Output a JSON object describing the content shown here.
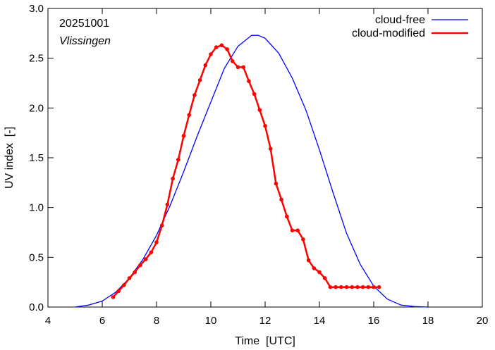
{
  "chart_data": {
    "type": "line",
    "title": "",
    "xlabel": "Time  [UTC]",
    "ylabel": "UV index  [-]",
    "xlim": [
      4,
      20
    ],
    "ylim": [
      0,
      3.0
    ],
    "xticks": [
      4,
      6,
      8,
      10,
      12,
      14,
      16,
      18,
      20
    ],
    "yticks": [
      0.0,
      0.5,
      1.0,
      1.5,
      2.0,
      2.5,
      3.0
    ],
    "xtick_labels": [
      "4",
      "6",
      "8",
      "10",
      "12",
      "14",
      "16",
      "18",
      "20"
    ],
    "ytick_labels": [
      "0.0",
      "0.5",
      "1.0",
      "1.5",
      "2.0",
      "2.5",
      "3.0"
    ],
    "annotations": {
      "date": "20251001",
      "location": "Vlissingen"
    },
    "legend_position": "top-right",
    "series": [
      {
        "name": "cloud-free",
        "color": "#0000ff",
        "markers": false,
        "x": [
          5.0,
          5.5,
          6.0,
          6.5,
          7.0,
          7.5,
          8.0,
          8.5,
          9.0,
          9.5,
          10.0,
          10.5,
          11.0,
          11.5,
          11.75,
          12.0,
          12.5,
          13.0,
          13.5,
          14.0,
          14.5,
          15.0,
          15.5,
          16.0,
          16.5,
          17.0,
          17.5,
          18.0
        ],
        "y": [
          0.0,
          0.02,
          0.06,
          0.15,
          0.29,
          0.48,
          0.72,
          1.02,
          1.36,
          1.72,
          2.06,
          2.4,
          2.62,
          2.73,
          2.73,
          2.7,
          2.55,
          2.3,
          1.98,
          1.58,
          1.15,
          0.74,
          0.43,
          0.21,
          0.08,
          0.02,
          0.005,
          0.0
        ]
      },
      {
        "name": "cloud-modified",
        "color": "#ff0000",
        "markers": true,
        "x": [
          6.4,
          6.6,
          6.8,
          7.0,
          7.2,
          7.4,
          7.6,
          7.8,
          8.0,
          8.2,
          8.4,
          8.6,
          8.8,
          9.0,
          9.2,
          9.4,
          9.6,
          9.8,
          10.0,
          10.2,
          10.4,
          10.6,
          10.8,
          11.0,
          11.2,
          11.4,
          11.6,
          11.8,
          12.0,
          12.2,
          12.4,
          12.6,
          12.8,
          13.0,
          13.2,
          13.4,
          13.6,
          13.8,
          14.0,
          14.2,
          14.4,
          14.6,
          14.8,
          15.0,
          15.2,
          15.4,
          15.6,
          15.8,
          16.0,
          16.2
        ],
        "y": [
          0.1,
          0.16,
          0.22,
          0.29,
          0.35,
          0.42,
          0.48,
          0.55,
          0.65,
          0.82,
          1.03,
          1.29,
          1.48,
          1.72,
          1.93,
          2.13,
          2.28,
          2.43,
          2.54,
          2.61,
          2.63,
          2.59,
          2.47,
          2.41,
          2.41,
          2.27,
          2.14,
          1.98,
          1.82,
          1.59,
          1.24,
          1.08,
          0.91,
          0.77,
          0.77,
          0.68,
          0.47,
          0.39,
          0.35,
          0.29,
          0.2,
          0.2,
          0.2,
          0.2,
          0.2,
          0.2,
          0.2,
          0.2,
          0.2,
          0.2
        ]
      }
    ]
  }
}
